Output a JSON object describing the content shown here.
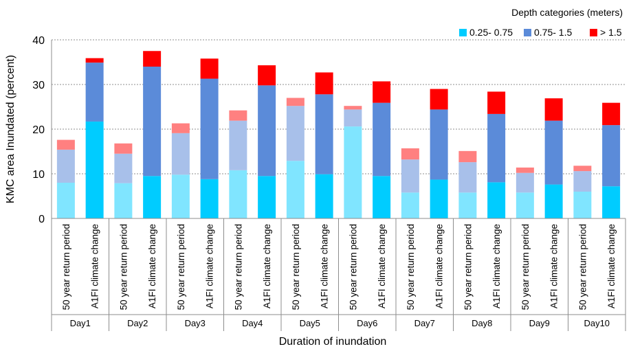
{
  "chart_data": {
    "type": "bar",
    "stacked": true,
    "ylabel": "KMC  area Inundated (percent)",
    "xlabel": "Duration of inundation",
    "ylim": [
      0,
      40
    ],
    "yticks": [
      0,
      10,
      20,
      30,
      40
    ],
    "grid": true,
    "legend": {
      "title": "Depth categories (meters)",
      "placement": "top-right",
      "entries": [
        {
          "label": "0.25- 0.75",
          "color": "#00ccff"
        },
        {
          "label": "0.75- 1.5",
          "color": "#5b8bd9"
        },
        {
          "label": "> 1.5",
          "color": "#ff0000"
        }
      ]
    },
    "scenarios": [
      "50 year return period",
      "A1FI climate change"
    ],
    "scenario_colors": {
      "50 year return period": [
        "#80e5ff",
        "#a8c0ea",
        "#ff8080"
      ],
      "A1FI climate change": [
        "#00ccff",
        "#5b8bd9",
        "#ff0000"
      ]
    },
    "groups": [
      "Day1",
      "Day2",
      "Day3",
      "Day4",
      "Day5",
      "Day6",
      "Day7",
      "Day8",
      "Day9",
      "Day10"
    ],
    "series": [
      {
        "name": "0.25- 0.75",
        "values": [
          8.0,
          21.7,
          7.9,
          9.5,
          9.8,
          8.8,
          10.8,
          9.5,
          12.9,
          9.9,
          20.6,
          9.5,
          5.8,
          8.7,
          5.8,
          8.1,
          5.8,
          7.6,
          6.0,
          7.2
        ]
      },
      {
        "name": "0.75- 1.5",
        "values": [
          7.4,
          13.2,
          6.6,
          24.5,
          9.3,
          22.5,
          11.1,
          20.3,
          12.3,
          17.9,
          3.8,
          16.4,
          7.4,
          15.7,
          6.8,
          15.3,
          4.4,
          14.3,
          4.6,
          13.7
        ]
      },
      {
        "name": "> 1.5",
        "values": [
          2.2,
          1.0,
          2.3,
          3.5,
          2.2,
          4.5,
          2.3,
          4.5,
          1.8,
          4.9,
          0.8,
          4.8,
          2.5,
          4.6,
          2.5,
          5.0,
          1.2,
          5.0,
          1.2,
          5.0
        ]
      }
    ]
  }
}
